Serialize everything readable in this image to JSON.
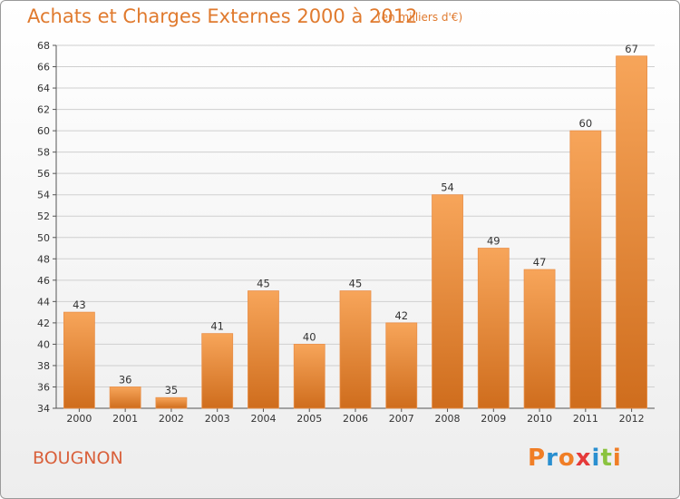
{
  "header": {
    "title": "Achats et Charges Externes 2000 à 2012",
    "subtitle": "(en milliers d'€)"
  },
  "footer": {
    "commune": "BOUGNON",
    "logo_text": "Proxiti"
  },
  "colors": {
    "title": "#e07a2e",
    "commune": "#d9603b",
    "bar_top": "#f7a55a",
    "bar_bottom": "#cf6d1d",
    "logo_letters": [
      "#f07e26",
      "#2a8fd0",
      "#f07e26",
      "#e53a3a",
      "#2a8fd0",
      "#8bc33f",
      "#f07e26"
    ]
  },
  "chart_data": {
    "type": "bar",
    "title": "Achats et Charges Externes 2000 à 2012",
    "subtitle": "(en milliers d'€)",
    "categories": [
      "2000",
      "2001",
      "2002",
      "2003",
      "2004",
      "2005",
      "2006",
      "2007",
      "2008",
      "2009",
      "2010",
      "2011",
      "2012"
    ],
    "values": [
      43,
      36,
      35,
      41,
      45,
      40,
      45,
      42,
      54,
      49,
      47,
      60,
      67
    ],
    "ylim": [
      34,
      68
    ],
    "yticks": [
      34,
      36,
      38,
      40,
      42,
      44,
      46,
      48,
      50,
      52,
      54,
      56,
      58,
      60,
      62,
      64,
      66,
      68
    ],
    "grid": true,
    "data_labels": true
  }
}
